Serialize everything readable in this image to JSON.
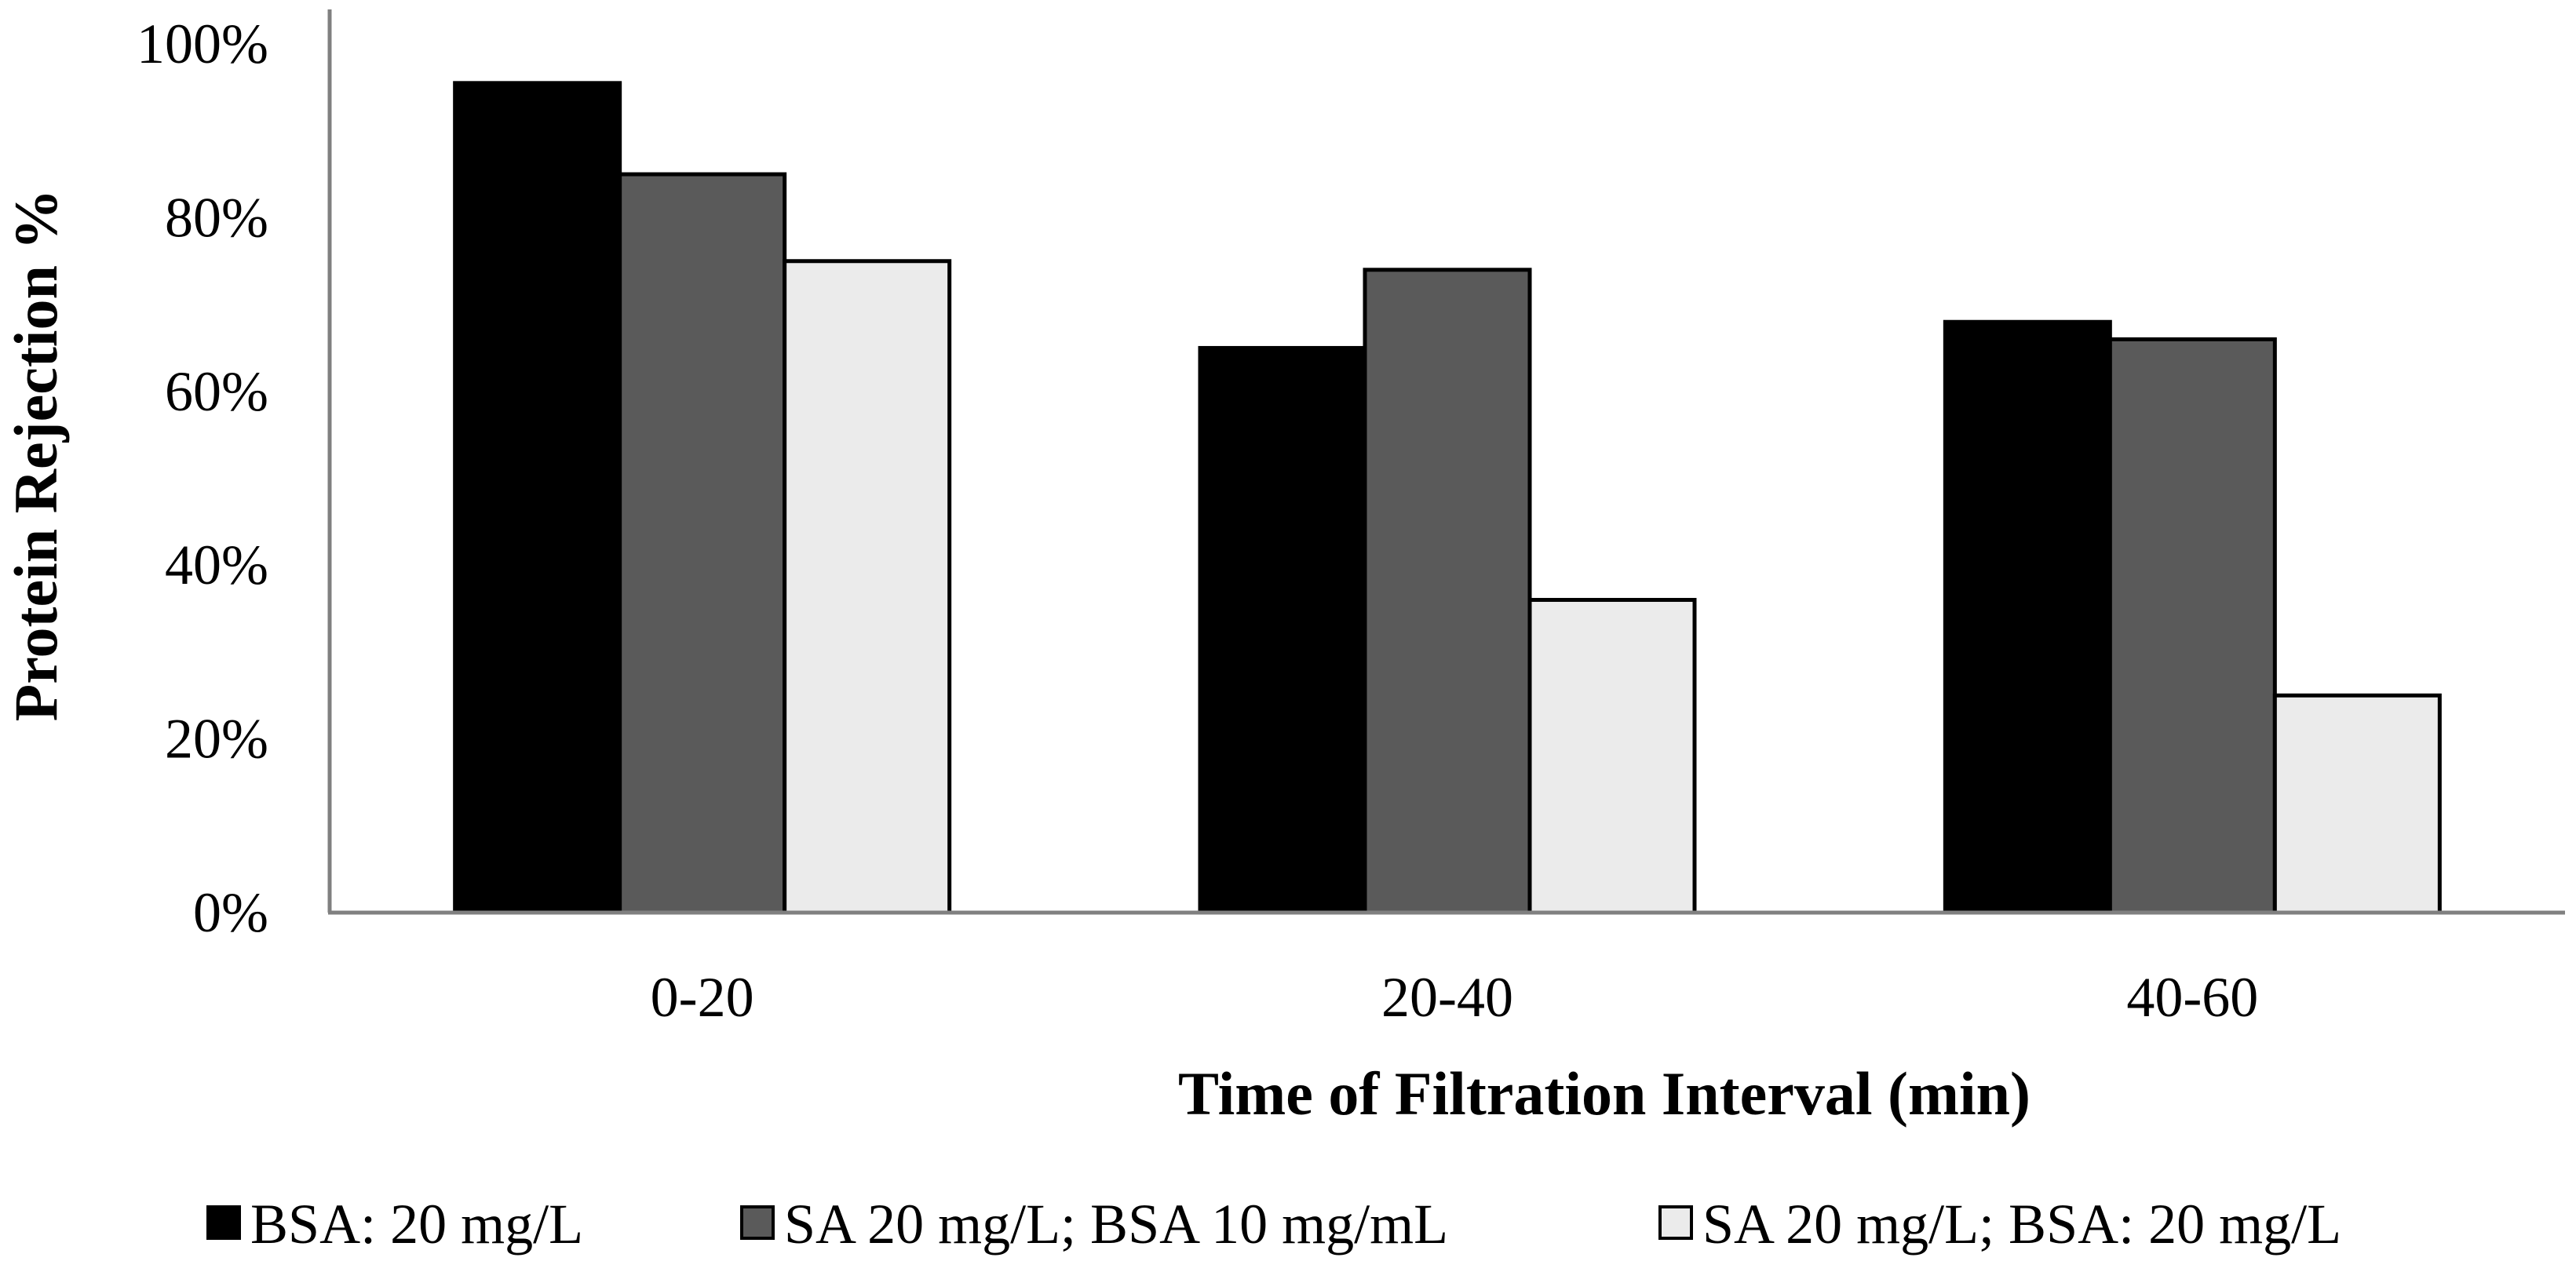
{
  "chart_data": {
    "type": "bar",
    "title": "",
    "xlabel": "Time of Filtration Interval (min)",
    "ylabel": "Protein  Rejection %",
    "categories": [
      "0-20",
      "20-40",
      "40-60"
    ],
    "ylim": [
      0,
      100
    ],
    "yticks": [
      0,
      20,
      40,
      60,
      80,
      100
    ],
    "ytick_labels": [
      "0%",
      "20%",
      "40%",
      "60%",
      "80%",
      "100%"
    ],
    "grid": false,
    "legend_position": "bottom",
    "series": [
      {
        "name": "BSA: 20 mg/L",
        "color": "#000000",
        "values": [
          95.5,
          65,
          68
        ]
      },
      {
        "name": "SA 20 mg/L; BSA 10 mg/mL",
        "color": "#5a5a5a",
        "values": [
          85,
          74,
          66
        ]
      },
      {
        "name": "SA 20 mg/L; BSA: 20 mg/L",
        "color": "#ebebeb",
        "values": [
          75,
          36,
          25
        ]
      }
    ]
  }
}
